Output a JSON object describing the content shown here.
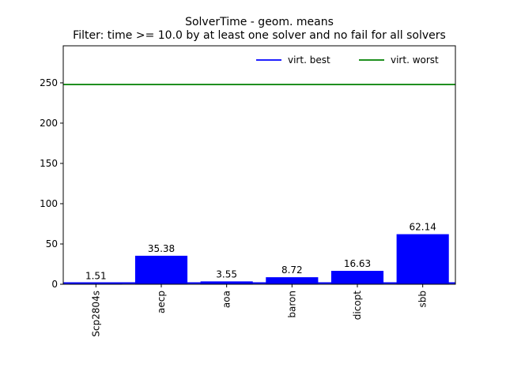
{
  "chart_data": {
    "type": "bar",
    "title": "SolverTime - geom. means",
    "subtitle": "Filter: time >= 10.0 by at least one solver and no fail for all solvers",
    "xlabel": "",
    "ylabel": "",
    "categories": [
      "Scp2804s",
      "aecp",
      "aoa",
      "baron",
      "dicopt",
      "sbb"
    ],
    "series": [
      {
        "values": [
          1.51,
          35.38,
          3.55,
          8.72,
          16.63,
          62.14
        ],
        "color": "#0000ff"
      }
    ],
    "data_labels": [
      "1.51",
      "35.38",
      "3.55",
      "8.72",
      "16.63",
      "62.14"
    ],
    "reference_lines": [
      {
        "name": "virt. best",
        "value": 1.51,
        "color": "#0000ff"
      },
      {
        "name": "virt. worst",
        "value": 248,
        "color": "#008000"
      }
    ],
    "ylim": [
      0,
      296
    ],
    "yticks": [
      0,
      50,
      100,
      150,
      200,
      250
    ],
    "grid": false,
    "legend_position": "top-right"
  }
}
